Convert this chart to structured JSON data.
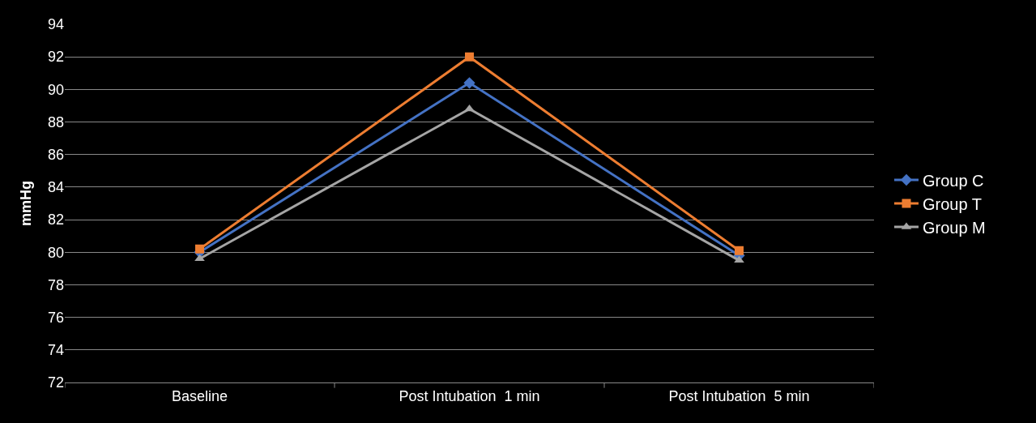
{
  "chart_data": {
    "type": "line",
    "ylabel": "mmHg",
    "categories": [
      "Baseline",
      "Post Intubation  1 min",
      "Post Intubation  5 min"
    ],
    "series": [
      {
        "name": "Group C",
        "color": "#4472c4",
        "marker": "diamond",
        "values": [
          80.0,
          90.4,
          79.8
        ]
      },
      {
        "name": "Group T",
        "color": "#ed7d31",
        "marker": "square",
        "values": [
          80.2,
          92.0,
          80.1
        ]
      },
      {
        "name": "Group M",
        "color": "#a5a5a5",
        "marker": "triangle",
        "values": [
          79.6,
          88.8,
          79.5
        ]
      }
    ],
    "ylim": [
      72,
      94
    ],
    "yticks": [
      72,
      74,
      76,
      78,
      80,
      82,
      84,
      86,
      88,
      90,
      92,
      94
    ],
    "grid": "y",
    "legend": "right",
    "line_style": "solid"
  }
}
